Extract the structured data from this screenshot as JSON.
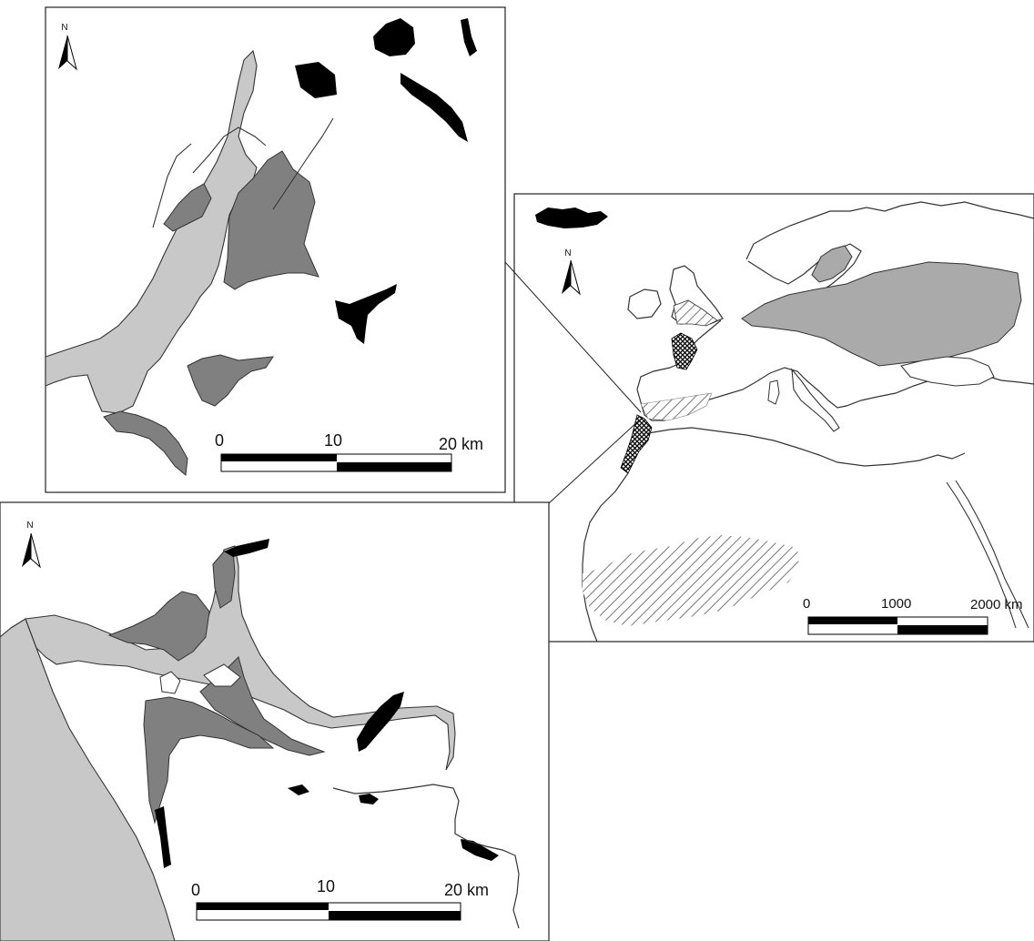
{
  "colors": {
    "water": "#c8c8c8",
    "marsh": "#808080",
    "black": "#000000",
    "outline": "#3a3a3a",
    "paper": "#ffffff"
  },
  "panels": {
    "top_left": {
      "north_label": "N",
      "scale_labels": [
        "0",
        "10",
        "20 km"
      ]
    },
    "bottom_left": {
      "north_label": "N",
      "scale_labels": [
        "0",
        "10",
        "20 km"
      ]
    },
    "europe": {
      "north_label": "N",
      "scale_labels": [
        "0",
        "1000",
        "2000 km"
      ]
    }
  },
  "icons": [
    "north-arrow-icon",
    "scale-bar",
    "leader-line"
  ]
}
